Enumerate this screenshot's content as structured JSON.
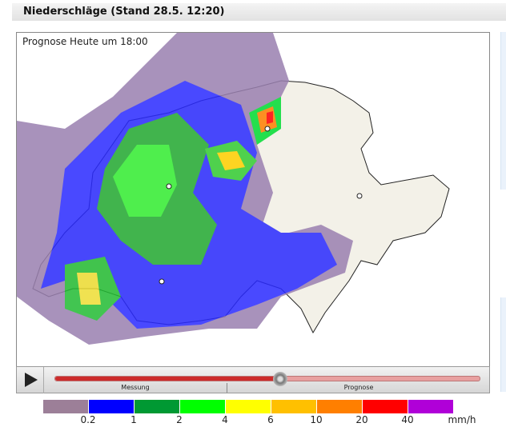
{
  "header": {
    "title": "Niederschläge (Stand 28.5. 12:20)"
  },
  "map": {
    "label": "Prognose Heute um 18:00",
    "colors": {
      "land": "#f4f1ea",
      "border": "#222",
      "rain_light": "#9a7ea0",
      "rain_blue": "#0000ff",
      "rain_green": "#009933",
      "rain_lime": "#00ff00",
      "rain_yellow": "#ffff00"
    }
  },
  "player": {
    "play_icon": "play-icon",
    "progress_percent": 53,
    "segments": [
      "Messung",
      "Prognose"
    ]
  },
  "legend": {
    "colors": [
      "#9c7f98",
      "#0000ff",
      "#009933",
      "#00ff00",
      "#ffff00",
      "#ffc000",
      "#ff7f00",
      "#ff0000",
      "#b000d8"
    ],
    "labels": [
      "0.2",
      "1",
      "2",
      "4",
      "6",
      "10",
      "20",
      "40"
    ],
    "unit": "mm/h"
  }
}
